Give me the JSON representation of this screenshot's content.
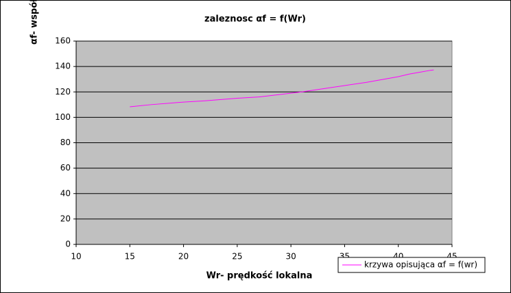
{
  "chart_data": {
    "type": "line",
    "title": "zaleznosc αf = f(Wr)",
    "x_label": "Wr- prędkość lokalna",
    "y_label": "αf- współ",
    "x": [
      15,
      17,
      20,
      22,
      25,
      27,
      30,
      31,
      33,
      35,
      37,
      40,
      41,
      42,
      43,
      43.3
    ],
    "series": [
      {
        "name": "krzywa opisująca αf = f(wr)",
        "color": "#ff00ff",
        "values": [
          108.3,
          110,
          112,
          113,
          115,
          116,
          119,
          120,
          122.5,
          125,
          127.5,
          132,
          134,
          135.5,
          137,
          137.3
        ]
      }
    ],
    "xlim": [
      10,
      45
    ],
    "xticks": [
      10,
      15,
      20,
      25,
      30,
      35,
      40,
      45
    ],
    "ylim": [
      0,
      160
    ],
    "yticks": [
      0,
      20,
      40,
      60,
      80,
      100,
      120,
      140,
      160
    ],
    "grid": true,
    "legend": "bottom-right",
    "plot_background": "#c0c0c0"
  }
}
